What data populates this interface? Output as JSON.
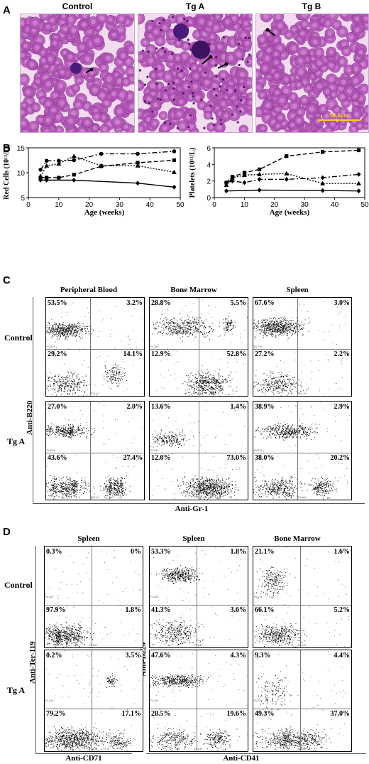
{
  "panel_a": {
    "letter": "A",
    "columns": [
      "Control",
      "Tg A",
      "Tg B"
    ],
    "scale_bar": "50.0µm"
  },
  "panel_b": {
    "letter": "B"
  },
  "chart_data": [
    {
      "type": "line",
      "xlabel": "Age (weeks)",
      "ylabel": "Red Cells (10¹²/L)",
      "xlim": [
        0,
        50
      ],
      "ylim": [
        5,
        15
      ],
      "xticks": [
        0,
        10,
        20,
        30,
        40,
        50
      ],
      "yticks": [
        5,
        10,
        15
      ],
      "series": [
        {
          "marker": "diamond",
          "dash": "solid",
          "x": [
            4,
            6,
            15,
            36,
            48
          ],
          "y": [
            8.5,
            8.5,
            8.5,
            7.9,
            7.1
          ]
        },
        {
          "marker": "square",
          "dash": "dashed",
          "x": [
            4,
            6,
            10,
            15,
            24,
            36,
            48
          ],
          "y": [
            9.0,
            9.0,
            9.0,
            9.6,
            11.3,
            12.0,
            12.5
          ]
        },
        {
          "marker": "triangle",
          "dash": "dotted",
          "x": [
            4,
            6,
            10,
            15,
            24,
            36,
            48
          ],
          "y": [
            9.3,
            11.4,
            11.8,
            13.3,
            11.4,
            11.4,
            10.1
          ]
        },
        {
          "marker": "circle",
          "dash": "dashdot",
          "x": [
            4,
            6,
            10,
            15,
            24,
            36,
            48
          ],
          "y": [
            10.6,
            12.4,
            12.4,
            12.5,
            13.8,
            13.8,
            14.3
          ]
        }
      ]
    },
    {
      "type": "line",
      "xlabel": "Age (weeks)",
      "ylabel": "Platelets (10¹²/L)",
      "xlim": [
        0,
        50
      ],
      "ylim": [
        0,
        6
      ],
      "xticks": [
        0,
        10,
        20,
        30,
        40,
        50
      ],
      "yticks": [
        0,
        2,
        4,
        6
      ],
      "series": [
        {
          "marker": "diamond",
          "dash": "solid",
          "x": [
            4,
            15,
            36,
            48
          ],
          "y": [
            0.8,
            0.9,
            0.85,
            0.8
          ]
        },
        {
          "marker": "square",
          "dash": "dashed",
          "x": [
            4,
            6,
            10,
            15,
            24,
            36,
            48
          ],
          "y": [
            1.8,
            2.5,
            3.0,
            3.4,
            5.0,
            5.5,
            5.7
          ]
        },
        {
          "marker": "triangle",
          "dash": "dotted",
          "x": [
            4,
            6,
            10,
            15,
            24,
            36,
            48
          ],
          "y": [
            1.5,
            2.4,
            2.7,
            2.8,
            2.9,
            1.7,
            1.7
          ]
        },
        {
          "marker": "diamond",
          "dash": "dashdot",
          "x": [
            4,
            6,
            10,
            15,
            24,
            36,
            48
          ],
          "y": [
            1.8,
            2.0,
            1.8,
            2.2,
            2.2,
            2.4,
            2.8
          ]
        }
      ]
    }
  ],
  "panel_c": {
    "letter": "C",
    "columns": [
      "Peripheral Blood",
      "Bone Marrow",
      "Spleen"
    ],
    "rows": [
      "Control",
      "Tg A"
    ],
    "y_axis": "Anti-B220",
    "x_axis": "Anti-Gr-1",
    "quadrants": [
      [
        [
          "53.5%",
          "3.2%",
          "29.2%",
          "14.1%"
        ],
        [
          "28.8%",
          "5.5%",
          "12.9%",
          "52.8%"
        ],
        [
          "67.6%",
          "3.0%",
          "27.2%",
          "2.2%"
        ]
      ],
      [
        [
          "27.0%",
          "2.0%",
          "43.6%",
          "27.4%"
        ],
        [
          "13.6%",
          "1.4%",
          "12.0%",
          "73.0%"
        ],
        [
          "38.9%",
          "2.9%",
          "38.0%",
          "20.2%"
        ]
      ]
    ]
  },
  "panel_d": {
    "letter": "D",
    "columns": [
      "Spleen",
      "Spleen",
      "Bone Marrow"
    ],
    "rows": [
      "Control",
      "Tg A"
    ],
    "y_axes": [
      "Anti-Ter-119",
      "Anti-B220"
    ],
    "x_axes": [
      "Anti-CD71",
      "Anti-CD41"
    ],
    "quadrants": [
      [
        [
          "0.3%",
          "0%",
          "97.9%",
          "1.8%"
        ],
        [
          "53.3%",
          "1.8%",
          "41.3%",
          "3.6%"
        ],
        [
          "21.1%",
          "1.6%",
          "66.1%",
          "5.2%"
        ]
      ],
      [
        [
          "0.2%",
          "3.5%",
          "79.2%",
          "17.1%"
        ],
        [
          "47.6%",
          "4.3%",
          "28.5%",
          "19.6%"
        ],
        [
          "9.3%",
          "4.4%",
          "49.3%",
          "37.0%"
        ]
      ]
    ]
  }
}
